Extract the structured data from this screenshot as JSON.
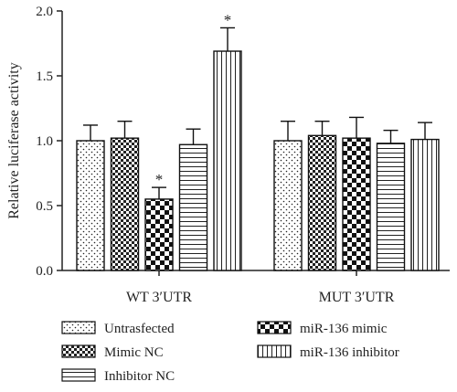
{
  "chart_data": {
    "type": "bar",
    "title": "",
    "xlabel": "",
    "ylabel": "Relative luciferase activity",
    "ylim": [
      0,
      2.0
    ],
    "yticks": [
      "0.0",
      "0.5",
      "1.0",
      "1.5",
      "2.0"
    ],
    "categories": [
      "WT 3′UTR",
      "MUT 3′UTR"
    ],
    "series": [
      {
        "name": "Untrasfected",
        "pattern": "dots",
        "values": [
          1.0,
          1.0
        ],
        "errors": [
          0.12,
          0.15
        ],
        "significant": [
          false,
          false
        ]
      },
      {
        "name": "Mimic NC",
        "pattern": "checker-fine",
        "values": [
          1.02,
          1.04
        ],
        "errors": [
          0.13,
          0.11
        ],
        "significant": [
          false,
          false
        ]
      },
      {
        "name": "miR-136 mimic",
        "pattern": "checker",
        "values": [
          0.55,
          1.02
        ],
        "errors": [
          0.09,
          0.16
        ],
        "significant": [
          true,
          false
        ]
      },
      {
        "name": "Inhibitor NC",
        "pattern": "hlines",
        "values": [
          0.97,
          0.98
        ],
        "errors": [
          0.12,
          0.1
        ],
        "significant": [
          false,
          false
        ]
      },
      {
        "name": "miR-136 inhibitor",
        "pattern": "vlines",
        "values": [
          1.69,
          1.01
        ],
        "errors": [
          0.18,
          0.13
        ],
        "significant": [
          true,
          false
        ]
      }
    ],
    "significance_marker": "*",
    "grid": false,
    "legend_position": "bottom"
  }
}
